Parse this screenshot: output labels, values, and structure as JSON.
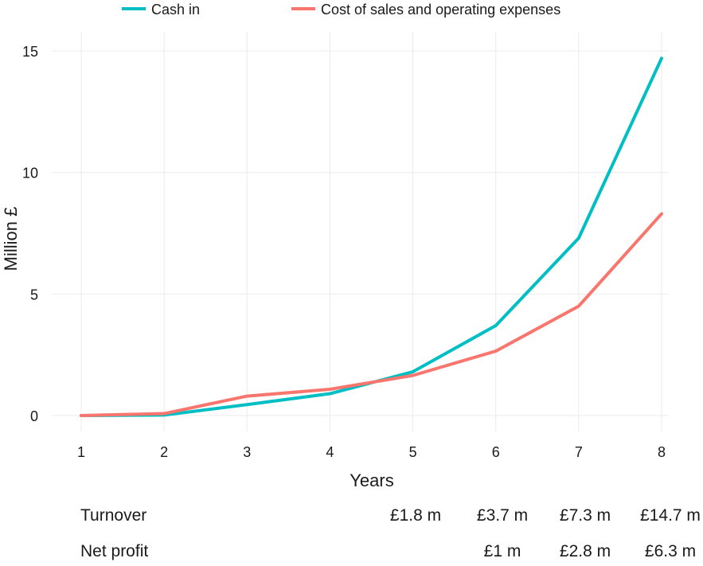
{
  "chart_data": {
    "type": "line",
    "xlabel": "Years",
    "ylabel": "Million £",
    "x": [
      1,
      2,
      3,
      4,
      5,
      6,
      7,
      8
    ],
    "xlim": [
      1,
      8
    ],
    "ylim": [
      0,
      15
    ],
    "yticks": [
      0,
      5,
      10,
      15
    ],
    "grid": true,
    "legend": "top",
    "series": [
      {
        "name": "Cash in",
        "color": "#00BFC4",
        "values": [
          0,
          0.02,
          0.45,
          0.9,
          1.8,
          3.7,
          7.3,
          14.7
        ]
      },
      {
        "name": "Cost of sales and operating expenses",
        "color": "#F8766D",
        "values": [
          0,
          0.08,
          0.8,
          1.08,
          1.65,
          2.65,
          4.5,
          8.3
        ]
      }
    ]
  },
  "table": {
    "rows": [
      {
        "label": "Turnover",
        "values": [
          "",
          "",
          "",
          "",
          "£1.8 m",
          "£3.7 m",
          "£7.3 m",
          "£14.7 m"
        ]
      },
      {
        "label": "Net profit",
        "values": [
          "",
          "",
          "",
          "",
          "",
          "£1 m",
          "£2.8 m",
          "£6.3 m"
        ]
      }
    ]
  }
}
